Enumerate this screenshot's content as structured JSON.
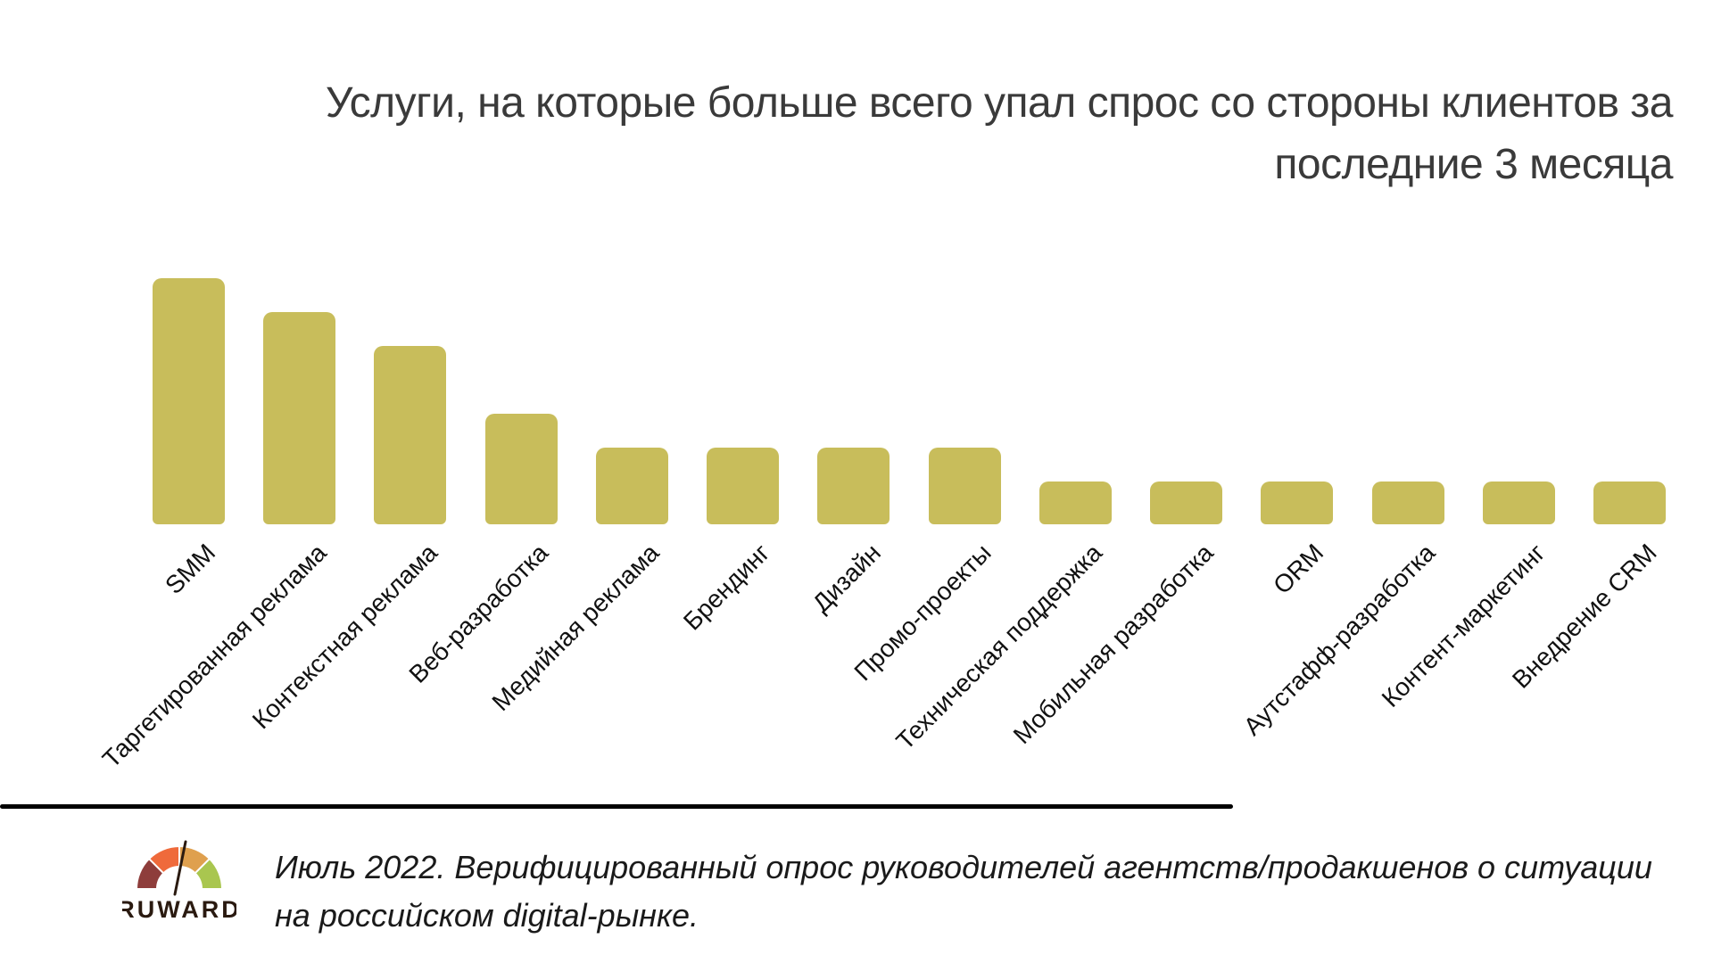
{
  "title_lines": [
    "Услуги, на которые больше всего упал спрос со стороны клиентов за",
    "последние 3 месяца"
  ],
  "chart_data": {
    "type": "bar",
    "title": "Услуги, на которые больше всего упал спрос со стороны клиентов за последние 3 месяца",
    "categories": [
      "SMM",
      "Таргетированная реклама",
      "Контекстная реклама",
      "Веб-разработка",
      "Медийная реклама",
      "Брендинг",
      "Дизайн",
      "Промо-проекты",
      "Техническая поддержка",
      "Мобильная разработка",
      "ORM",
      "Аутстафф-разработка",
      "Контент-маркетинг",
      "Внедрение CRM"
    ],
    "values": [
      29,
      25,
      21,
      13,
      9,
      9,
      9,
      9,
      5,
      5,
      5,
      5,
      5,
      5
    ],
    "xlabel": "",
    "ylabel": "",
    "ylim": [
      0,
      30
    ],
    "grid": false,
    "legend": "none",
    "value_labels": false,
    "category_label_rotation_deg": 45,
    "bar_color": "#C8BD5B"
  },
  "footer": {
    "logo": {
      "brand": "RUWARD",
      "gauge_colors": [
        "#8E3D3B",
        "#EF6A3B",
        "#DFA04E",
        "#A9C64F"
      ],
      "needle_color": "#2A1A10",
      "wordmark_color": "#2A1A10"
    },
    "caption_lines": [
      "Июль 2022. Верифицированный опрос руководителей агентств/продакшенов о ситуации",
      "на российском digital-рынке."
    ]
  },
  "colors": {
    "background": "#FFFFFF",
    "bar": "#C8BD5B",
    "title_text": "#3A3A3A",
    "category_text": "#111111",
    "caption_text": "#1A1A1A",
    "divider": "#000000"
  }
}
